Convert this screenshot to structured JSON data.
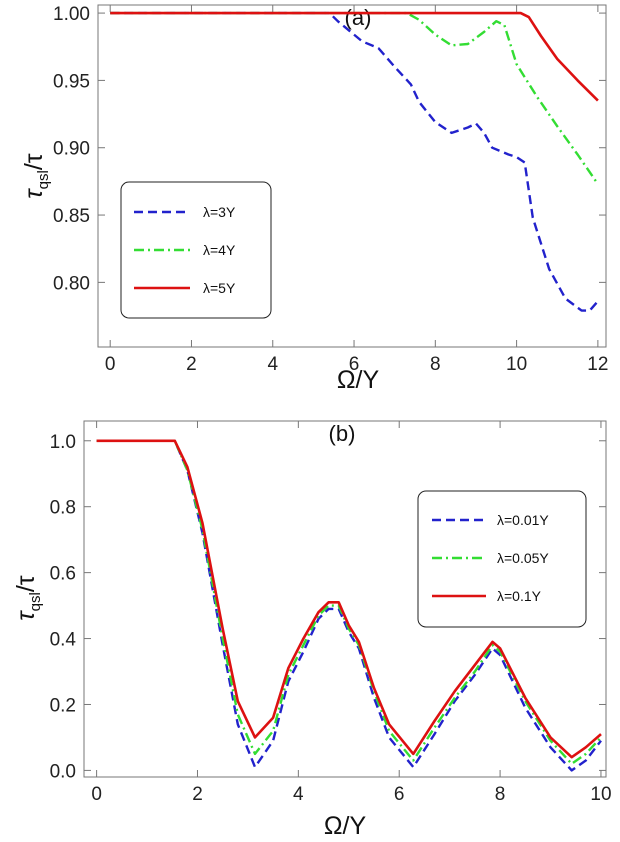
{
  "chart_data": [
    {
      "type": "line",
      "title": "(a)",
      "xlabel": "Ω/Υ",
      "ylabel_main": "τ",
      "ylabel_sub": "qsl",
      "ylabel_den": "/τ",
      "xlim": [
        -0.3,
        12.2
      ],
      "ylim": [
        0.752,
        1.006
      ],
      "xticks": [
        0,
        2,
        4,
        6,
        8,
        10,
        12
      ],
      "yticks": [
        0.8,
        0.85,
        0.9,
        0.95,
        1.0
      ],
      "yticklabels": [
        "0.80",
        "0.85",
        "0.90",
        "0.95",
        "1.00"
      ],
      "legend_position": "lower-left",
      "series": [
        {
          "name": "λ=3Υ",
          "color": "#2222cc",
          "dash": "dashed",
          "points": [
            [
              0,
              1.0
            ],
            [
              5.4,
              1.0
            ],
            [
              5.6,
              0.994
            ],
            [
              6.0,
              0.984
            ],
            [
              6.2,
              0.979
            ],
            [
              6.6,
              0.974
            ],
            [
              7.0,
              0.96
            ],
            [
              7.4,
              0.947
            ],
            [
              7.6,
              0.934
            ],
            [
              8.0,
              0.919
            ],
            [
              8.4,
              0.911
            ],
            [
              8.8,
              0.915
            ],
            [
              9.0,
              0.918
            ],
            [
              9.2,
              0.911
            ],
            [
              9.4,
              0.9
            ],
            [
              9.8,
              0.895
            ],
            [
              10.0,
              0.893
            ],
            [
              10.2,
              0.889
            ],
            [
              10.4,
              0.848
            ],
            [
              10.8,
              0.81
            ],
            [
              11.2,
              0.788
            ],
            [
              11.6,
              0.779
            ],
            [
              11.8,
              0.779
            ],
            [
              12.0,
              0.786
            ]
          ]
        },
        {
          "name": "λ=4Υ",
          "color": "#33dd33",
          "dash": "dashdot",
          "points": [
            [
              0,
              1.0
            ],
            [
              7.3,
              1.0
            ],
            [
              7.6,
              0.995
            ],
            [
              8.0,
              0.984
            ],
            [
              8.4,
              0.976
            ],
            [
              8.8,
              0.977
            ],
            [
              9.2,
              0.986
            ],
            [
              9.5,
              0.994
            ],
            [
              9.7,
              0.991
            ],
            [
              10.0,
              0.962
            ],
            [
              10.5,
              0.938
            ],
            [
              11.0,
              0.916
            ],
            [
              11.5,
              0.895
            ],
            [
              12.0,
              0.873
            ]
          ]
        },
        {
          "name": "λ=5Υ",
          "color": "#dd1111",
          "dash": "solid",
          "points": [
            [
              0,
              1.0
            ],
            [
              10.0,
              1.0
            ],
            [
              10.1,
              1.0
            ],
            [
              10.3,
              0.997
            ],
            [
              10.6,
              0.983
            ],
            [
              11.0,
              0.966
            ],
            [
              11.5,
              0.95
            ],
            [
              12.0,
              0.935
            ]
          ]
        }
      ]
    },
    {
      "type": "line",
      "title": "(b)",
      "xlabel": "Ω/Υ",
      "ylabel_main": "τ",
      "ylabel_sub": "qsl",
      "ylabel_den": "/τ",
      "xlim": [
        -0.25,
        10.1
      ],
      "ylim": [
        -0.02,
        1.06
      ],
      "xticks": [
        0,
        2,
        4,
        6,
        8,
        10
      ],
      "yticks": [
        0.0,
        0.2,
        0.4,
        0.6,
        0.8,
        1.0
      ],
      "yticklabels": [
        "0.0",
        "0.2",
        "0.4",
        "0.6",
        "0.8",
        "1.0"
      ],
      "legend_position": "top-right",
      "series": [
        {
          "name": "λ=0.01Υ",
          "color": "#2222cc",
          "dash": "dashed",
          "points": [
            [
              0,
              1.0
            ],
            [
              1.55,
              1.0
            ],
            [
              1.8,
              0.91
            ],
            [
              2.1,
              0.72
            ],
            [
              2.5,
              0.38
            ],
            [
              2.8,
              0.14
            ],
            [
              3.14,
              0.01
            ],
            [
              3.5,
              0.09
            ],
            [
              3.8,
              0.27
            ],
            [
              4.1,
              0.36
            ],
            [
              4.4,
              0.46
            ],
            [
              4.6,
              0.49
            ],
            [
              4.8,
              0.49
            ],
            [
              5.0,
              0.42
            ],
            [
              5.2,
              0.37
            ],
            [
              5.5,
              0.22
            ],
            [
              5.8,
              0.1
            ],
            [
              6.28,
              0.01
            ],
            [
              6.7,
              0.11
            ],
            [
              7.1,
              0.21
            ],
            [
              7.5,
              0.29
            ],
            [
              7.85,
              0.37
            ],
            [
              8.0,
              0.35
            ],
            [
              8.5,
              0.19
            ],
            [
              9.0,
              0.07
            ],
            [
              9.42,
              0.0
            ],
            [
              9.7,
              0.03
            ],
            [
              10.0,
              0.09
            ]
          ]
        },
        {
          "name": "λ=0.05Υ",
          "color": "#33dd33",
          "dash": "dashdot",
          "points": [
            [
              0,
              1.0
            ],
            [
              1.55,
              1.0
            ],
            [
              1.8,
              0.91
            ],
            [
              2.1,
              0.73
            ],
            [
              2.5,
              0.4
            ],
            [
              2.8,
              0.17
            ],
            [
              3.14,
              0.05
            ],
            [
              3.5,
              0.12
            ],
            [
              3.8,
              0.29
            ],
            [
              4.1,
              0.38
            ],
            [
              4.4,
              0.47
            ],
            [
              4.6,
              0.5
            ],
            [
              4.8,
              0.5
            ],
            [
              5.0,
              0.43
            ],
            [
              5.2,
              0.38
            ],
            [
              5.5,
              0.24
            ],
            [
              5.8,
              0.12
            ],
            [
              6.28,
              0.03
            ],
            [
              6.7,
              0.13
            ],
            [
              7.1,
              0.22
            ],
            [
              7.5,
              0.3
            ],
            [
              7.85,
              0.38
            ],
            [
              8.0,
              0.36
            ],
            [
              8.5,
              0.21
            ],
            [
              9.0,
              0.09
            ],
            [
              9.42,
              0.02
            ],
            [
              9.7,
              0.05
            ],
            [
              10.0,
              0.1
            ]
          ]
        },
        {
          "name": "λ=0.1Υ",
          "color": "#dd1111",
          "dash": "solid",
          "points": [
            [
              0,
              1.0
            ],
            [
              1.55,
              1.0
            ],
            [
              1.8,
              0.92
            ],
            [
              2.1,
              0.75
            ],
            [
              2.5,
              0.43
            ],
            [
              2.8,
              0.21
            ],
            [
              3.14,
              0.1
            ],
            [
              3.5,
              0.16
            ],
            [
              3.8,
              0.31
            ],
            [
              4.1,
              0.4
            ],
            [
              4.4,
              0.48
            ],
            [
              4.6,
              0.51
            ],
            [
              4.8,
              0.51
            ],
            [
              5.0,
              0.44
            ],
            [
              5.2,
              0.39
            ],
            [
              5.5,
              0.25
            ],
            [
              5.8,
              0.14
            ],
            [
              6.28,
              0.05
            ],
            [
              6.7,
              0.15
            ],
            [
              7.1,
              0.24
            ],
            [
              7.5,
              0.32
            ],
            [
              7.85,
              0.39
            ],
            [
              8.0,
              0.37
            ],
            [
              8.5,
              0.22
            ],
            [
              9.0,
              0.1
            ],
            [
              9.42,
              0.04
            ],
            [
              9.7,
              0.07
            ],
            [
              10.0,
              0.11
            ]
          ]
        }
      ]
    }
  ]
}
